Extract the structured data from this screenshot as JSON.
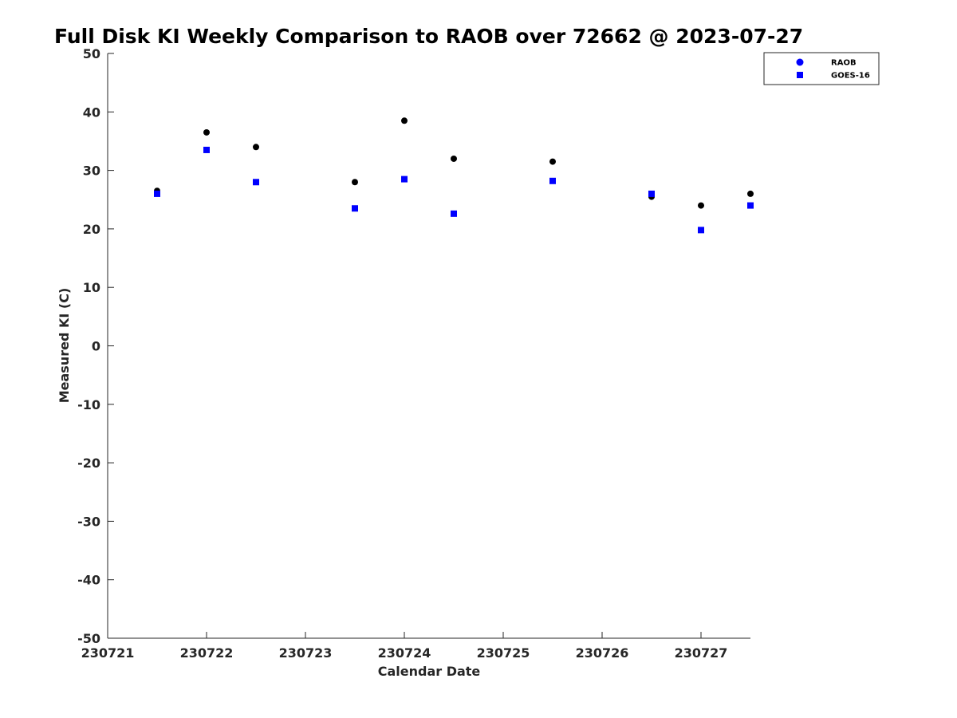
{
  "chart_data": {
    "type": "scatter",
    "title": "Full Disk KI Weekly Comparison to RAOB over 72662 @ 2023-07-27",
    "xlabel": "Calendar Date",
    "ylabel": "Measured KI (C)",
    "xlim": [
      230721,
      230727.5
    ],
    "ylim": [
      -50,
      50
    ],
    "x_ticks": [
      230721,
      230722,
      230723,
      230724,
      230725,
      230726,
      230727
    ],
    "x_tick_labels": [
      "230721",
      "230722",
      "230723",
      "230724",
      "230725",
      "230726",
      "230727"
    ],
    "y_ticks": [
      -50,
      -40,
      -30,
      -20,
      -10,
      0,
      10,
      20,
      30,
      40,
      50
    ],
    "y_tick_labels": [
      "-50",
      "-40",
      "-30",
      "-20",
      "-10",
      "0",
      "10",
      "20",
      "30",
      "40",
      "50"
    ],
    "grid": false,
    "legend_position": "top-right",
    "series": [
      {
        "name": "RAOB",
        "marker": "circle",
        "color": "#000000",
        "legend_color": "#0000ff",
        "x": [
          230721.5,
          230722,
          230722.5,
          230723.5,
          230724,
          230724.5,
          230725.5,
          230726.5,
          230727,
          230727.5
        ],
        "y": [
          26.5,
          36.5,
          34,
          28,
          38.5,
          32,
          31.5,
          25.5,
          24,
          26
        ]
      },
      {
        "name": "GOES-16",
        "marker": "square",
        "color": "#0000ff",
        "legend_color": "#0000ff",
        "x": [
          230721.5,
          230722,
          230722.5,
          230723.5,
          230724,
          230724.5,
          230725.5,
          230726.5,
          230727,
          230727.5
        ],
        "y": [
          26,
          33.5,
          28,
          23.5,
          28.5,
          22.6,
          28.2,
          26,
          19.8,
          24
        ]
      }
    ]
  }
}
